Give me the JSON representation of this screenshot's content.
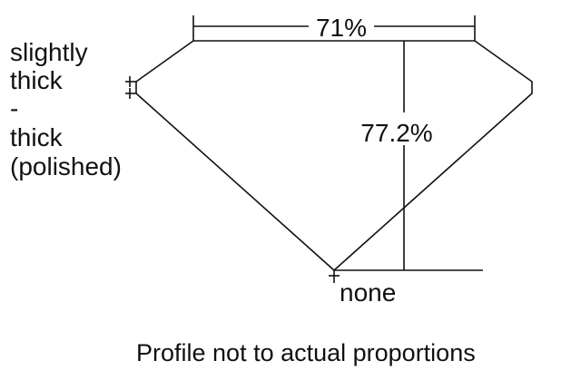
{
  "diagram": {
    "girdle_label_lines": [
      "slightly",
      "thick",
      "-",
      "thick",
      "(polished)"
    ],
    "table_label": "71%",
    "depth_label": "77.2%",
    "culet_label": "none",
    "footer_note": "Profile not to actual proportions"
  },
  "colors": {
    "line": "#111111",
    "background": "#ffffff"
  }
}
